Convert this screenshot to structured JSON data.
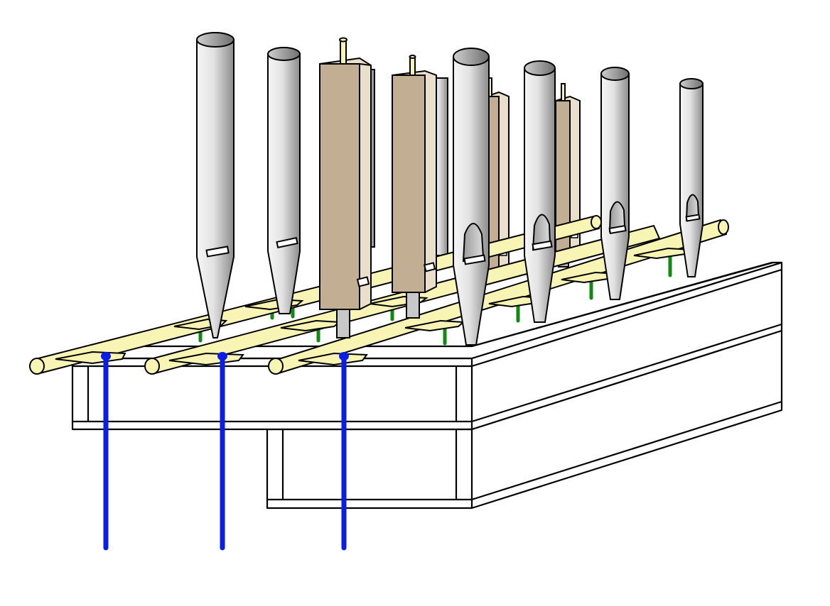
{
  "figure": {
    "subject": "pipe-organ-windchest-mechanism",
    "background_color": "#ffffff",
    "outline_color": "#000000"
  },
  "colors": {
    "metal_pipe_light": "#f4f4f4",
    "metal_pipe_dark": "#8a8a8a",
    "wood_pipe_front": "#c2ae93",
    "wood_pipe_side": "#eadfca",
    "slider_rod": "#f8f4b4",
    "tracker_wire": "#0a1ee6",
    "pallet_spring": "#118a11",
    "windchest": "#ffffff"
  },
  "components": {
    "metal_pipe_count": 8,
    "wooden_pipe_count": 4,
    "slider_rod_count": 3,
    "tracker_wire_count": 3,
    "pallet_spring_count": 10
  }
}
